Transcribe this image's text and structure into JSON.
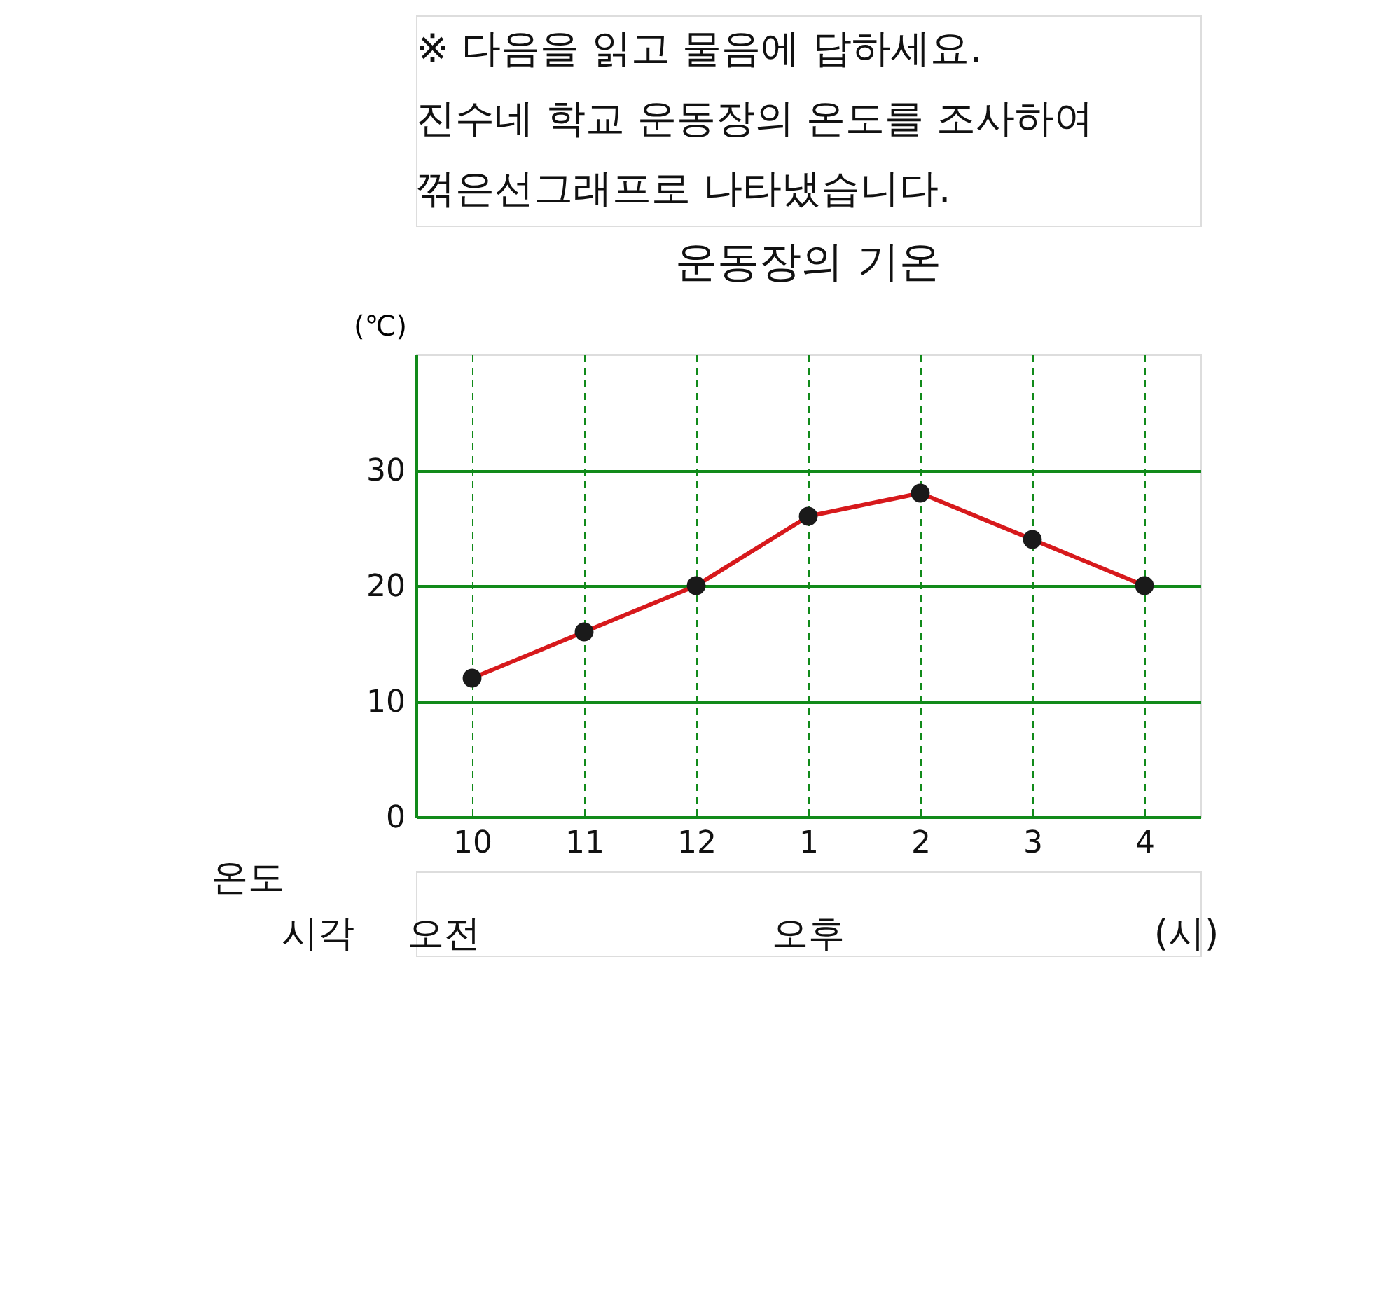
{
  "chart_data": {
    "type": "line",
    "title": "운동장의 기온",
    "categories": [
      "10",
      "11",
      "12",
      "1",
      "2",
      "3",
      "4"
    ],
    "series": [
      {
        "color": "#d7191c",
        "values": [
          12,
          16,
          20,
          26,
          28,
          24,
          20
        ]
      }
    ],
    "ylabel": "(℃)",
    "ylim": [
      0,
      40
    ],
    "yticks": [
      0,
      10,
      20,
      30
    ],
    "grid": true,
    "marker": "circle",
    "line_style": "solid",
    "annotations": [
      "※ 다음을 읽고 물음에 답하세요.",
      "진수네 학교 운동장의 온도를 조사하여",
      "꺾은선그래프로 나타냈습니다.",
      "온도",
      "시각",
      "오전",
      "오후",
      "(시)"
    ]
  }
}
